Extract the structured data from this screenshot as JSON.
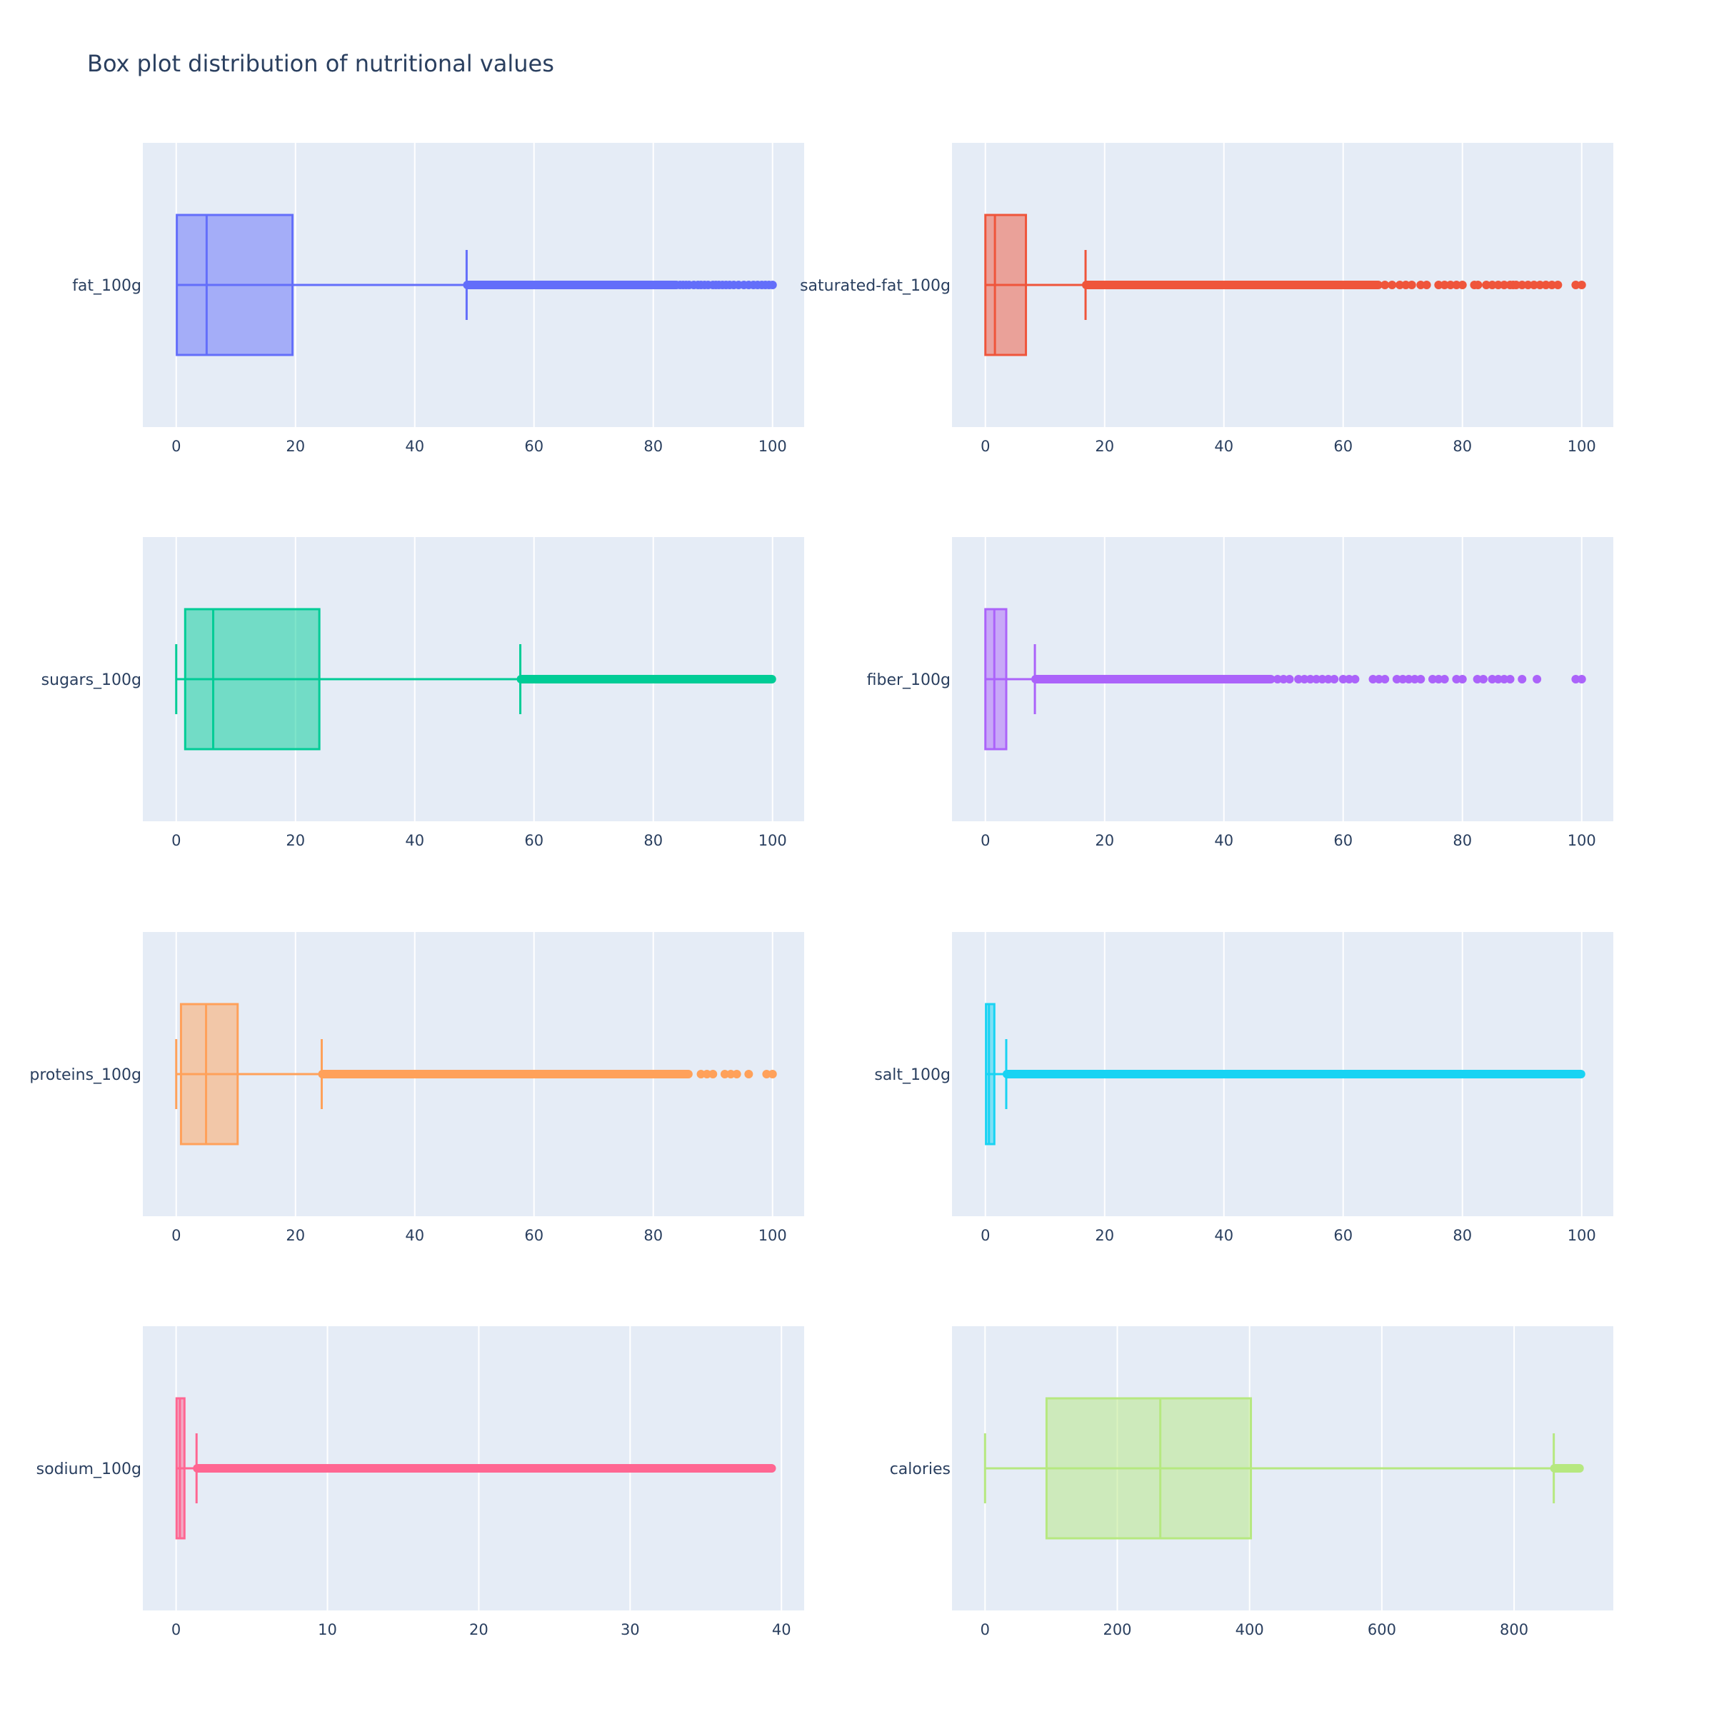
{
  "title": "Box plot distribution of nutritional values",
  "chart_data": {
    "type": "box",
    "title": "Box plot distribution of nutritional values",
    "grid": true,
    "legend": "none",
    "subplots": [
      {
        "label": "fat_100g",
        "color": "#636efa",
        "xlim": [
          -5.6,
          105.3
        ],
        "ticks": [
          0,
          20,
          40,
          60,
          80,
          100
        ],
        "min": 0,
        "q1": 0.1,
        "median": 5.1,
        "q3": 19.5,
        "whisker_low": 0,
        "whisker_high": 48.7,
        "outliers_dense_range": [
          48.7,
          84
        ],
        "outliers_sparse": [
          84.5,
          85,
          85.5,
          86,
          86.8,
          87.5,
          88,
          88.6,
          89.2,
          90,
          90.5,
          91,
          91.6,
          92.2,
          92.8,
          93.5,
          94.3,
          95.2,
          96,
          96.8,
          97.5,
          98.2,
          98.8,
          99.4,
          100
        ]
      },
      {
        "label": "saturated-fat_100g",
        "color": "#ef553b",
        "xlim": [
          -5.6,
          105.3
        ],
        "ticks": [
          0,
          20,
          40,
          60,
          80,
          100
        ],
        "min": 0,
        "q1": 0,
        "median": 1.6,
        "q3": 6.8,
        "whisker_low": 0,
        "whisker_high": 16.8,
        "outliers_dense_range": [
          16.8,
          66
        ],
        "outliers_sparse": [
          67,
          68.2,
          69.5,
          70.5,
          71.5,
          73,
          74,
          76,
          77,
          78,
          79,
          80,
          82,
          82.6,
          84,
          85,
          86,
          87,
          88,
          88.5,
          89,
          90,
          91,
          92,
          93,
          94,
          95,
          96,
          99,
          100
        ]
      },
      {
        "label": "sugars_100g",
        "color": "#00cc96",
        "xlim": [
          -5.6,
          105.3
        ],
        "ticks": [
          0,
          20,
          40,
          60,
          80,
          100
        ],
        "min": 0,
        "q1": 1.5,
        "median": 6.2,
        "q3": 24,
        "whisker_low": 0,
        "whisker_high": 57.7,
        "outliers_dense_range": [
          57.7,
          100
        ],
        "outliers_sparse": []
      },
      {
        "label": "fiber_100g",
        "color": "#ab63fa",
        "xlim": [
          -5.6,
          105.3
        ],
        "ticks": [
          0,
          20,
          40,
          60,
          80,
          100
        ],
        "min": 0,
        "q1": 0,
        "median": 1.5,
        "q3": 3.5,
        "whisker_low": 0,
        "whisker_high": 8.3,
        "outliers_dense_range": [
          8.3,
          48
        ],
        "outliers_sparse": [
          49,
          50,
          51,
          52.5,
          53.5,
          54.5,
          55.5,
          56.5,
          57.5,
          58.5,
          60,
          61,
          62,
          65,
          66,
          67,
          69,
          70,
          71,
          72,
          73,
          75,
          76,
          77,
          79,
          80,
          82.5,
          83.5,
          85,
          86,
          87,
          88,
          90,
          92.5,
          99,
          100
        ]
      },
      {
        "label": "proteins_100g",
        "color": "#ffa15a",
        "xlim": [
          -5.6,
          105.3
        ],
        "ticks": [
          0,
          20,
          40,
          60,
          80,
          100
        ],
        "min": 0,
        "q1": 0.8,
        "median": 5,
        "q3": 10.3,
        "whisker_low": 0,
        "whisker_high": 24.4,
        "outliers_dense_range": [
          24.4,
          86
        ],
        "outliers_sparse": [
          88,
          89,
          90,
          92,
          93,
          94,
          96,
          99,
          100
        ]
      },
      {
        "label": "salt_100g",
        "color": "#19d3f3",
        "xlim": [
          -5.6,
          105.3
        ],
        "ticks": [
          0,
          20,
          40,
          60,
          80,
          100
        ],
        "min": 0,
        "q1": 0.1,
        "median": 0.6,
        "q3": 1.5,
        "whisker_low": 0,
        "whisker_high": 3.5,
        "outliers_dense_range": [
          3.5,
          100
        ],
        "outliers_sparse": []
      },
      {
        "label": "sodium_100g",
        "color": "#ff6692",
        "xlim": [
          -2.2,
          41.5
        ],
        "ticks": [
          0,
          10,
          20,
          30,
          40
        ],
        "min": 0,
        "q1": 0.03,
        "median": 0.25,
        "q3": 0.55,
        "whisker_low": 0,
        "whisker_high": 1.35,
        "outliers_dense_range": [
          1.35,
          39.4
        ],
        "outliers_sparse": []
      },
      {
        "label": "calories",
        "color": "#b6e880",
        "xlim": [
          -50,
          950
        ],
        "ticks": [
          0,
          200,
          400,
          600,
          800
        ],
        "min": 0,
        "q1": 93,
        "median": 265,
        "q3": 402,
        "whisker_low": 0,
        "whisker_high": 860,
        "outliers_dense_range": [
          860,
          900
        ],
        "outliers_sparse": []
      }
    ]
  }
}
